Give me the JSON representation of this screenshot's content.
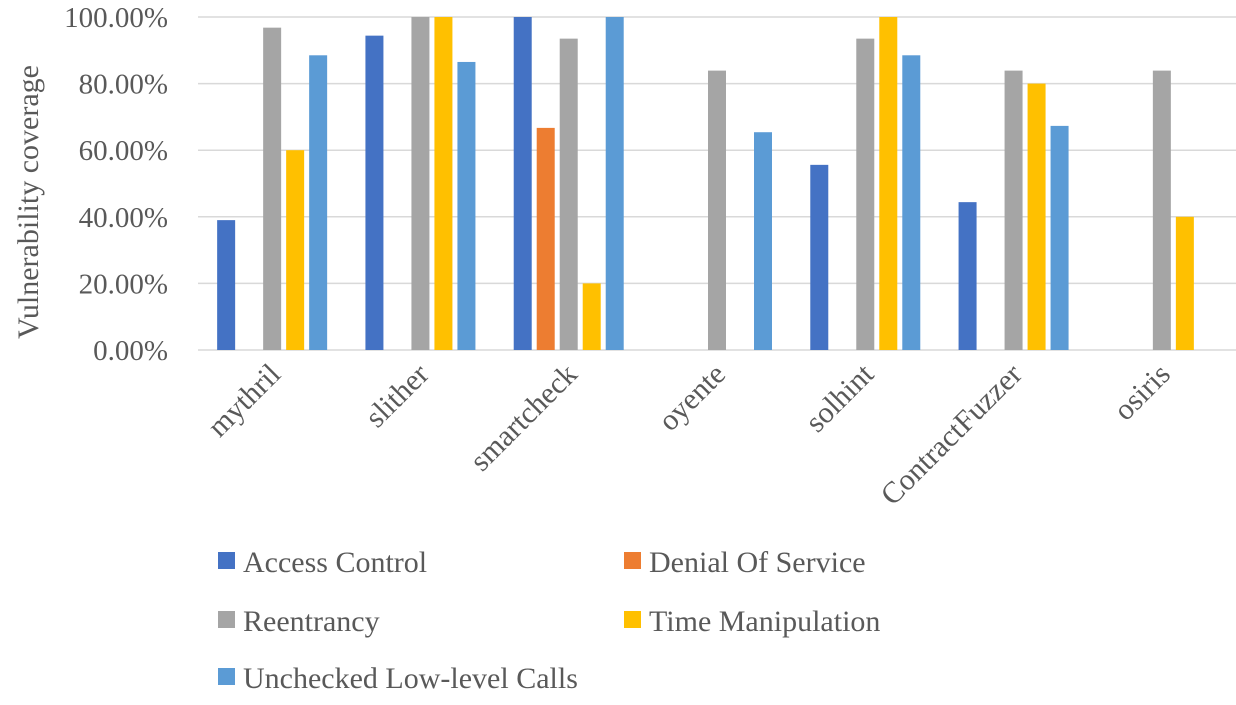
{
  "chart_data": {
    "type": "bar",
    "title": "",
    "xlabel": "",
    "ylabel": "Vulnerability coverage",
    "ylim": [
      0,
      100
    ],
    "yticks": [
      {
        "value": 0,
        "label": "0.00%"
      },
      {
        "value": 20,
        "label": "20.00%"
      },
      {
        "value": 40,
        "label": "40.00%"
      },
      {
        "value": 60,
        "label": "60.00%"
      },
      {
        "value": 80,
        "label": "80.00%"
      },
      {
        "value": 100,
        "label": "100.00%"
      }
    ],
    "grid": true,
    "legend_position": "bottom",
    "categories": [
      "mythril",
      "slither",
      "smartcheck",
      "oyente",
      "solhint",
      "ContractFuzzer",
      "osiris"
    ],
    "series": [
      {
        "name": "Access Control",
        "color": "#4472C4",
        "values": [
          39,
          94.4,
          100,
          0,
          55.6,
          44.4,
          0
        ]
      },
      {
        "name": "Denial Of Service",
        "color": "#ED7D31",
        "values": [
          0,
          0,
          66.7,
          0,
          0,
          0,
          0
        ]
      },
      {
        "name": "Reentrancy",
        "color": "#A5A5A5",
        "values": [
          96.8,
          100,
          93.5,
          83.9,
          93.5,
          83.9,
          83.9
        ]
      },
      {
        "name": "Time Manipulation",
        "color": "#FFC000",
        "values": [
          60,
          100,
          20,
          0,
          100,
          80,
          40
        ]
      },
      {
        "name": "Unchecked Low-level Calls",
        "color": "#5B9BD5",
        "values": [
          88.5,
          86.5,
          100,
          65.4,
          88.5,
          67.3,
          0
        ]
      }
    ]
  }
}
